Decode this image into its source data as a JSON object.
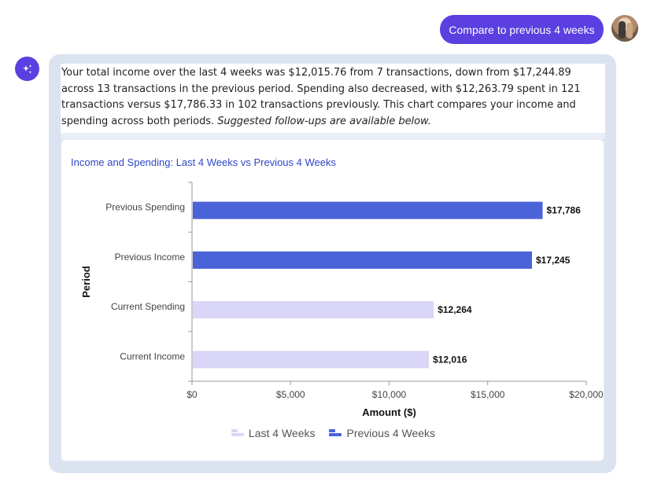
{
  "user_message": "Compare to previous 4 weeks",
  "assistant": {
    "text": "Your total income over the last 4 weeks was $12,015.76 from 7 transactions, down from $17,244.89 across 13 transactions in the previous period. Spending also decreased, with $12,263.79 spent in 121 transactions versus $17,786.33 in 102 transactions previously. This chart compares your income and spending across both periods.",
    "followup_note": "Suggested follow-ups are available below."
  },
  "icons": {
    "avatar": "user-avatar",
    "assistant": "sparkles-icon"
  },
  "colors": {
    "accent": "#5b3fe0",
    "current": "#d9d6f7",
    "previous": "#4a63d8",
    "title": "#2f46c8"
  },
  "chart_data": {
    "type": "bar",
    "orientation": "horizontal",
    "title": "Income and Spending: Last 4 Weeks vs Previous 4 Weeks",
    "xlabel": "Amount ($)",
    "ylabel": "Period",
    "xlim": [
      0,
      20000
    ],
    "xticks": [
      0,
      5000,
      10000,
      15000,
      20000
    ],
    "xtick_labels": [
      "$0",
      "$5,000",
      "$10,000",
      "$15,000",
      "$20,000"
    ],
    "categories": [
      "Previous Spending",
      "Previous Income",
      "Current Spending",
      "Current Income"
    ],
    "series": [
      {
        "name": "Last 4 Weeks",
        "values": [
          null,
          null,
          12264,
          12016
        ]
      },
      {
        "name": "Previous 4 Weeks",
        "values": [
          17786,
          17245,
          null,
          null
        ]
      }
    ],
    "data_labels": [
      "$17,786",
      "$17,245",
      "$12,264",
      "$12,016"
    ],
    "legend": "bottom-center",
    "grid": false
  }
}
